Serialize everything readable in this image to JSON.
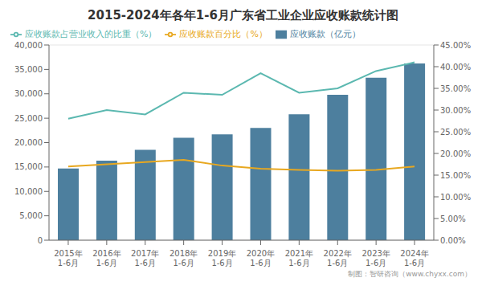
{
  "chart_data": {
    "type": "bar",
    "title": "2015-2024年各年1-6月广东省工业企业应收账款统计图",
    "categories": [
      "2015年\n1-6月",
      "2016年\n1-6月",
      "2017年\n1-6月",
      "2018年\n1-6月",
      "2019年\n1-6月",
      "2020年\n1-6月",
      "2021年\n1-6月",
      "2022年\n1-6月",
      "2023年\n1-6月",
      "2024年\n1-6月"
    ],
    "series": [
      {
        "name": "应收账款（亿元）",
        "type": "bar",
        "color": "#4d7f9e",
        "values": [
          14700,
          16300,
          18500,
          21000,
          21700,
          23000,
          25800,
          29800,
          33300,
          36200
        ]
      },
      {
        "name": "应收账款百分比（%）",
        "type": "line",
        "axis": "y2",
        "color": "#e8a820",
        "values": [
          17.0,
          17.5,
          18.0,
          18.5,
          17.2,
          16.5,
          16.2,
          16.0,
          16.2,
          17.0
        ]
      },
      {
        "name": "应收账款占营业收入的比重（%）",
        "type": "line",
        "axis": "y2",
        "color": "#5bb8b0",
        "values": [
          28.0,
          30.0,
          29.0,
          34.0,
          33.5,
          38.5,
          34.0,
          35.0,
          39.0,
          41.0
        ]
      }
    ],
    "ylim": [
      0,
      40000
    ],
    "yticks": [
      0,
      {
        "value": 5000,
        "label": "5,000"
      },
      {
        "value": 10000,
        "label": "10,000"
      },
      {
        "value": 15000,
        "label": "15,000"
      },
      {
        "value": 20000,
        "label": "20,000"
      },
      {
        "value": 25000,
        "label": "25,000"
      },
      {
        "value": 30000,
        "label": "30,000"
      },
      {
        "value": 35000,
        "label": "35,000"
      },
      {
        "value": 40000,
        "label": "40,000"
      }
    ],
    "y2lim": [
      0,
      45.0
    ],
    "y2ticks": [
      {
        "value": 0.0,
        "label": "0.00%"
      },
      {
        "value": 5.0,
        "label": "5.00%"
      },
      {
        "value": 10.0,
        "label": "10.00%"
      },
      {
        "value": 15.0,
        "label": "15.00%"
      },
      {
        "value": 20.0,
        "label": "20.00%"
      },
      {
        "value": 25.0,
        "label": "25.00%"
      },
      {
        "value": 30.0,
        "label": "30.00%"
      },
      {
        "value": 35.0,
        "label": "35.00%"
      },
      {
        "value": 40.0,
        "label": "40.00%"
      },
      {
        "value": 45.0,
        "label": "45.00%"
      }
    ],
    "grid": true,
    "legend": "upper left",
    "annotations": [
      "制图：智研咨询（www.chyxx.com）"
    ]
  }
}
